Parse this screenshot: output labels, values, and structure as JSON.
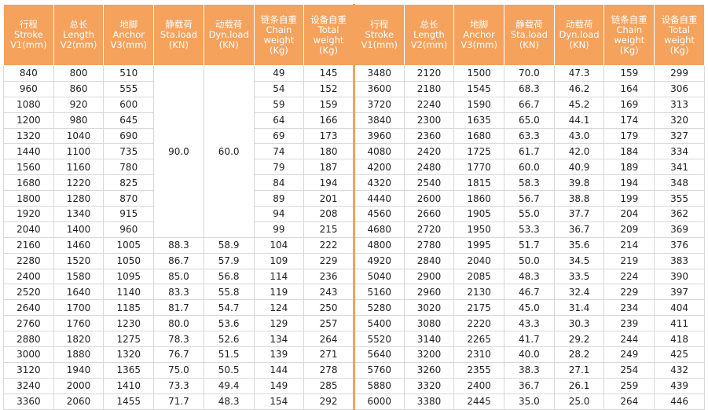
{
  "table": {
    "headers": [
      [
        "行程",
        "Stroke",
        "V1(mm)"
      ],
      [
        "总长",
        "Length",
        "V2(mm)"
      ],
      [
        "地脚",
        "Anchor",
        "V3(mm)"
      ],
      [
        "静载荷",
        "Sta.load",
        "(KN)"
      ],
      [
        "动载荷",
        "Dyn.load",
        "(KN)"
      ],
      [
        "链条自重",
        "Chain",
        "weight",
        "(Kg)"
      ],
      [
        "设备自重",
        "Total",
        "weight",
        "(Kg)"
      ]
    ],
    "left_merged": [
      "90.0",
      "60.0"
    ],
    "left": [
      [
        "840",
        "800",
        "510",
        "49",
        "145"
      ],
      [
        "960",
        "860",
        "555",
        "54",
        "152"
      ],
      [
        "1080",
        "920",
        "600",
        "59",
        "159"
      ],
      [
        "1200",
        "980",
        "645",
        "64",
        "166"
      ],
      [
        "1320",
        "1040",
        "690",
        "69",
        "173"
      ],
      [
        "1440",
        "1100",
        "735",
        "74",
        "180"
      ],
      [
        "1560",
        "1160",
        "780",
        "79",
        "187"
      ],
      [
        "1680",
        "1220",
        "825",
        "84",
        "194"
      ],
      [
        "1800",
        "1280",
        "870",
        "89",
        "201"
      ],
      [
        "1920",
        "1340",
        "915",
        "94",
        "208"
      ],
      [
        "2040",
        "1400",
        "960",
        "99",
        "215"
      ],
      [
        "2160",
        "1460",
        "1005",
        "88.3",
        "58.9",
        "104",
        "222"
      ],
      [
        "2280",
        "1520",
        "1050",
        "86.7",
        "57.9",
        "109",
        "229"
      ],
      [
        "2400",
        "1580",
        "1095",
        "85.0",
        "56.8",
        "114",
        "236"
      ],
      [
        "2520",
        "1640",
        "1140",
        "83.3",
        "55.8",
        "119",
        "243"
      ],
      [
        "2640",
        "1700",
        "1185",
        "81.7",
        "54.7",
        "124",
        "250"
      ],
      [
        "2760",
        "1760",
        "1230",
        "80.0",
        "53.6",
        "129",
        "257"
      ],
      [
        "2880",
        "1820",
        "1275",
        "78.3",
        "52.6",
        "134",
        "264"
      ],
      [
        "3000",
        "1880",
        "1320",
        "76.7",
        "51.5",
        "139",
        "271"
      ],
      [
        "3120",
        "1940",
        "1365",
        "75.0",
        "50.5",
        "144",
        "278"
      ],
      [
        "3240",
        "2000",
        "1410",
        "73.3",
        "49.4",
        "149",
        "285"
      ],
      [
        "3360",
        "2060",
        "1455",
        "71.7",
        "48.3",
        "154",
        "292"
      ]
    ],
    "right": [
      [
        "3480",
        "2120",
        "1500",
        "70.0",
        "47.3",
        "159",
        "299"
      ],
      [
        "3600",
        "2180",
        "1545",
        "68.3",
        "46.2",
        "164",
        "306"
      ],
      [
        "3720",
        "2240",
        "1590",
        "66.7",
        "45.2",
        "169",
        "313"
      ],
      [
        "3840",
        "2300",
        "1635",
        "65.0",
        "44.1",
        "174",
        "320"
      ],
      [
        "3960",
        "2360",
        "1680",
        "63.3",
        "43.0",
        "179",
        "327"
      ],
      [
        "4080",
        "2420",
        "1725",
        "61.7",
        "42.0",
        "184",
        "334"
      ],
      [
        "4200",
        "2480",
        "1770",
        "60.0",
        "40.9",
        "189",
        "341"
      ],
      [
        "4320",
        "2540",
        "1815",
        "58.3",
        "39.8",
        "194",
        "348"
      ],
      [
        "4440",
        "2600",
        "1860",
        "56.7",
        "38.8",
        "199",
        "355"
      ],
      [
        "4560",
        "2660",
        "1905",
        "55.0",
        "37.7",
        "204",
        "362"
      ],
      [
        "4680",
        "2720",
        "1950",
        "53.3",
        "36.7",
        "209",
        "369"
      ],
      [
        "4800",
        "2780",
        "1995",
        "51.7",
        "35.6",
        "214",
        "376"
      ],
      [
        "4920",
        "2840",
        "2040",
        "50.0",
        "34.5",
        "219",
        "383"
      ],
      [
        "5040",
        "2900",
        "2085",
        "48.3",
        "33.5",
        "224",
        "390"
      ],
      [
        "5160",
        "2960",
        "2130",
        "46.7",
        "32.4",
        "229",
        "397"
      ],
      [
        "5280",
        "3020",
        "2175",
        "45.0",
        "31.4",
        "234",
        "404"
      ],
      [
        "5400",
        "3080",
        "2220",
        "43.3",
        "30.3",
        "239",
        "411"
      ],
      [
        "5520",
        "3140",
        "2265",
        "41.7",
        "29.2",
        "244",
        "418"
      ],
      [
        "5640",
        "3200",
        "2310",
        "40.0",
        "28.2",
        "249",
        "425"
      ],
      [
        "5760",
        "3260",
        "2355",
        "38.3",
        "27.1",
        "254",
        "432"
      ],
      [
        "5880",
        "3320",
        "2400",
        "36.7",
        "26.1",
        "259",
        "439"
      ],
      [
        "6000",
        "3380",
        "2445",
        "35.0",
        "25.0",
        "264",
        "446"
      ]
    ]
  }
}
